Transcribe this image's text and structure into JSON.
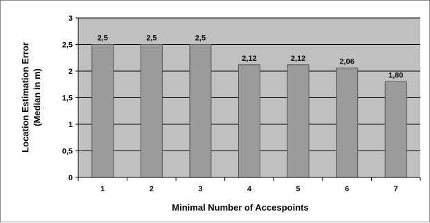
{
  "chart_data": {
    "type": "bar",
    "categories": [
      "1",
      "2",
      "3",
      "4",
      "5",
      "6",
      "7"
    ],
    "values": [
      2.5,
      2.5,
      2.5,
      2.12,
      2.12,
      2.06,
      1.8
    ],
    "data_labels": [
      "2,5",
      "2,5",
      "2,5",
      "2,12",
      "2,12",
      "2,06",
      "1,80"
    ],
    "title": "",
    "xlabel": "Minimal Number of Accespoints",
    "ylabel_line1": "Location Estimation Error",
    "ylabel_line2": "(Median in m)",
    "ylim": [
      0,
      3
    ],
    "yticks": [
      0,
      0.5,
      1,
      1.5,
      2,
      2.5,
      3
    ],
    "ytick_labels": [
      "0",
      "0,5",
      "1",
      "1,5",
      "2",
      "2,5",
      "3"
    ],
    "grid": true,
    "legend": "none",
    "colors": {
      "plot_background": "#c0c0c0",
      "bar_fill": "#9b9b9b",
      "bar_stroke": "#555555",
      "gridline": "#000000"
    }
  }
}
